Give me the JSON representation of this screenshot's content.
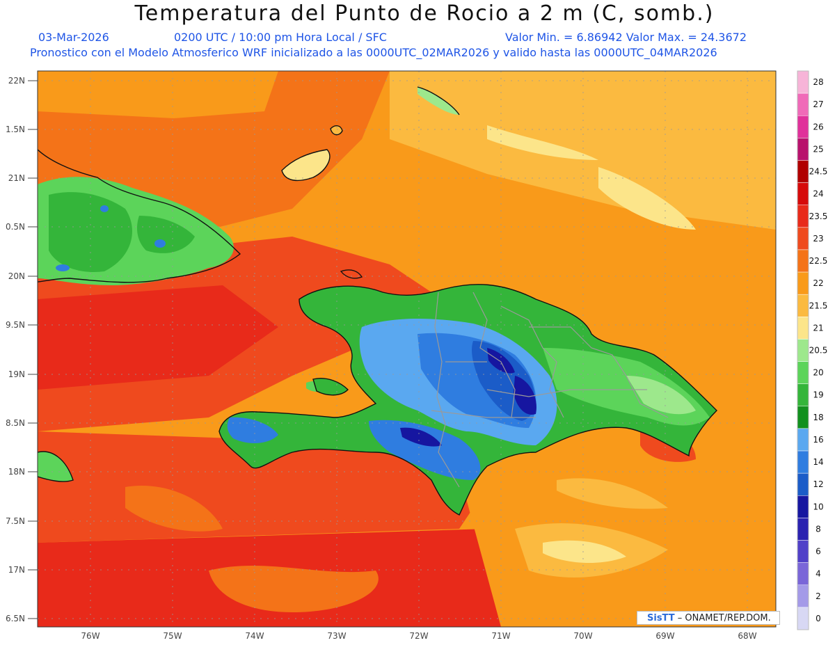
{
  "title": "Temperatura del Punto de Rocio a 2 m (C, somb.)",
  "date": "03-Mar-2026",
  "time": "0200 UTC / 10:00 pm Hora Local / SFC",
  "minmax": "Valor Min. = 6.86942  Valor Max. = 24.3672",
  "model": "Pronostico con el Modelo Atmosferico WRF inicializado a las 0000UTC_02MAR2026 y valido hasta las  0000UTC_04MAR2026",
  "lat_ticks": [
    "22N",
    "1.5N",
    "21N",
    "0.5N",
    "20N",
    "9.5N",
    "19N",
    "8.5N",
    "18N",
    "7.5N",
    "17N",
    "6.5N"
  ],
  "lon_ticks": [
    "76W",
    "75W",
    "74W",
    "73W",
    "72W",
    "71W",
    "70W",
    "69W",
    "68W"
  ],
  "legend": [
    {
      "label": "28",
      "color": "#f7b4d8"
    },
    {
      "label": "27",
      "color": "#f06ab8"
    },
    {
      "label": "26",
      "color": "#e0309a"
    },
    {
      "label": "25",
      "color": "#b8126c"
    },
    {
      "label": "24.5",
      "color": "#b00000"
    },
    {
      "label": "24",
      "color": "#d60a0a"
    },
    {
      "label": "23.5",
      "color": "#e82a1a"
    },
    {
      "label": "23",
      "color": "#ef4a1e"
    },
    {
      "label": "22.5",
      "color": "#f47318"
    },
    {
      "label": "22",
      "color": "#f99a1a"
    },
    {
      "label": "21.5",
      "color": "#fbba40"
    },
    {
      "label": "21",
      "color": "#fce58a"
    },
    {
      "label": "20.5",
      "color": "#9de88c"
    },
    {
      "label": "20",
      "color": "#5cd45a"
    },
    {
      "label": "19",
      "color": "#34b53a"
    },
    {
      "label": "18",
      "color": "#12901e"
    },
    {
      "label": "16",
      "color": "#5aa8f0"
    },
    {
      "label": "14",
      "color": "#2f7de0"
    },
    {
      "label": "12",
      "color": "#1b5cc8"
    },
    {
      "label": "10",
      "color": "#1616a0"
    },
    {
      "label": "8",
      "color": "#2a22b0"
    },
    {
      "label": "6",
      "color": "#5040c8"
    },
    {
      "label": "4",
      "color": "#7a66d8"
    },
    {
      "label": "2",
      "color": "#a49ae8"
    },
    {
      "label": "0",
      "color": "#d8d8f4"
    }
  ],
  "credit": {
    "logo": "SisTT",
    "text": "ONAMET/REP.DOM."
  }
}
